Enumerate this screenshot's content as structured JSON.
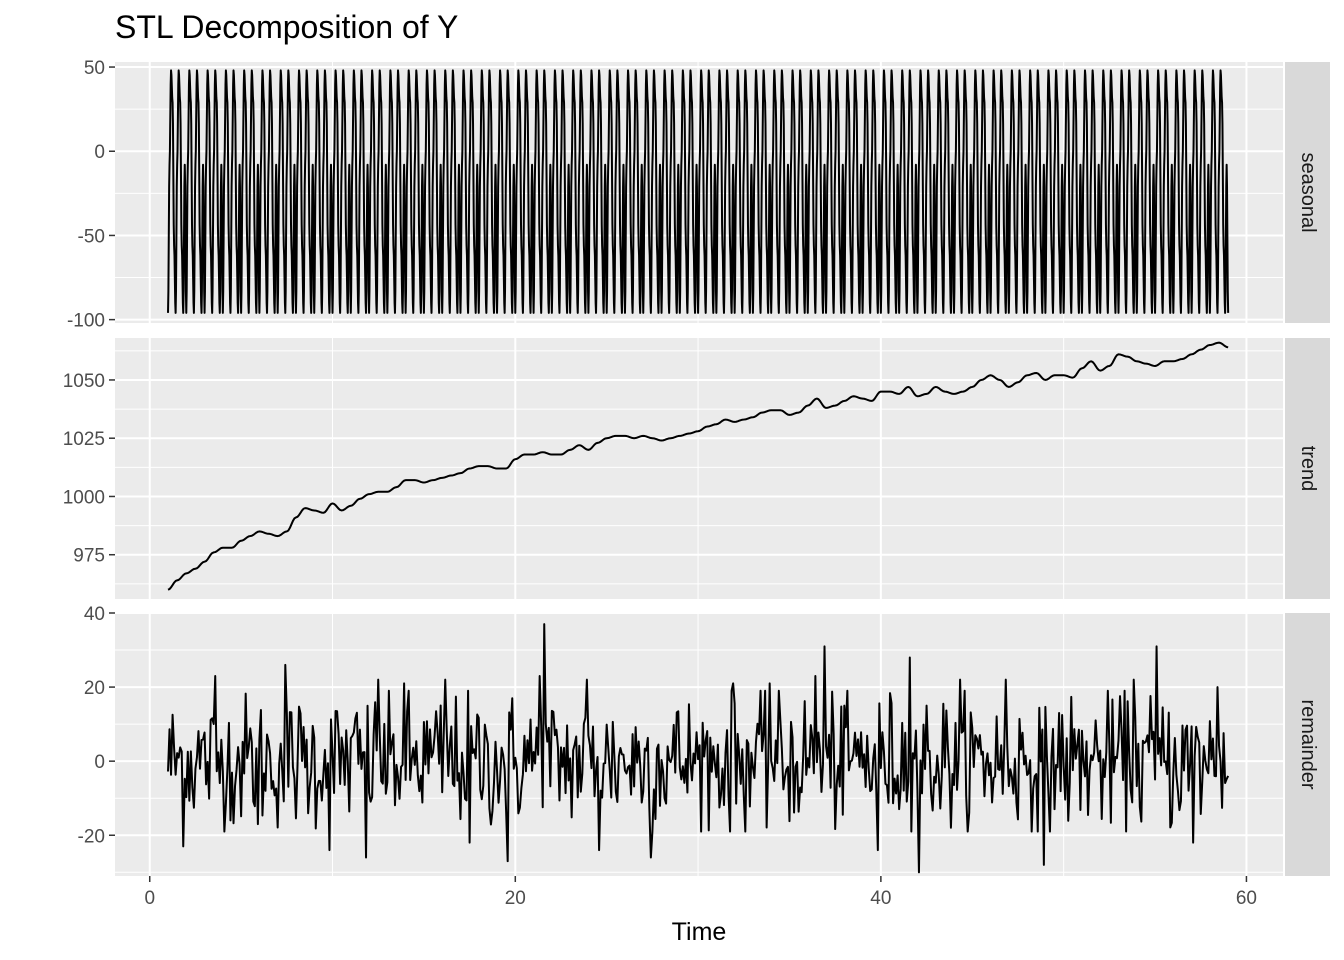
{
  "chart_data": {
    "type": "line",
    "title": "STL Decomposition of Y",
    "xlabel": "Time",
    "xlim": [
      -1.9,
      62.0
    ],
    "x_ticks": [
      0,
      20,
      40,
      60
    ],
    "x_range": [
      1,
      59
    ],
    "frequency": 12,
    "panels": [
      {
        "name": "seasonal",
        "ylim": [
          -102,
          53
        ],
        "y_ticks": [
          -100,
          -50,
          0,
          50
        ],
        "y_tick_labels": [
          "-100",
          "-50",
          "0",
          "50"
        ],
        "seasonal_period_values": [
          -96,
          -8,
          48,
          29,
          -56,
          -96,
          -8,
          48,
          29,
          -56,
          -96,
          -8
        ],
        "description_of_shape": "repeating cycle, about 3 cycles per time unit"
      },
      {
        "name": "trend",
        "ylim": [
          956,
          1068
        ],
        "y_ticks": [
          975,
          1000,
          1025,
          1050
        ],
        "y_tick_labels": [
          "975",
          "1000",
          "1025",
          "1050"
        ],
        "points": [
          [
            1,
            960
          ],
          [
            1.5,
            964
          ],
          [
            2,
            967
          ],
          [
            2.5,
            969
          ],
          [
            3,
            972
          ],
          [
            3.5,
            976
          ],
          [
            4,
            978
          ],
          [
            4.5,
            978
          ],
          [
            5,
            981
          ],
          [
            5.5,
            983
          ],
          [
            6,
            985
          ],
          [
            6.5,
            984
          ],
          [
            7,
            983
          ],
          [
            7.5,
            985
          ],
          [
            8,
            991
          ],
          [
            8.5,
            995
          ],
          [
            9,
            994
          ],
          [
            9.5,
            993
          ],
          [
            10,
            997
          ],
          [
            10.5,
            994
          ],
          [
            11,
            996
          ],
          [
            11.5,
            999
          ],
          [
            12,
            1001
          ],
          [
            12.5,
            1002
          ],
          [
            13,
            1002
          ],
          [
            13.5,
            1004
          ],
          [
            14,
            1007
          ],
          [
            14.5,
            1007
          ],
          [
            15,
            1006
          ],
          [
            15.5,
            1007
          ],
          [
            16,
            1008
          ],
          [
            16.5,
            1009
          ],
          [
            17,
            1010
          ],
          [
            17.5,
            1012
          ],
          [
            18,
            1013
          ],
          [
            18.5,
            1013
          ],
          [
            19,
            1012
          ],
          [
            19.5,
            1012
          ],
          [
            20,
            1016
          ],
          [
            20.5,
            1018
          ],
          [
            21,
            1018
          ],
          [
            21.5,
            1019
          ],
          [
            22,
            1018
          ],
          [
            22.5,
            1018
          ],
          [
            23,
            1020
          ],
          [
            23.5,
            1022
          ],
          [
            24,
            1020
          ],
          [
            24.5,
            1023
          ],
          [
            25,
            1025
          ],
          [
            25.5,
            1026
          ],
          [
            26,
            1026
          ],
          [
            26.5,
            1025
          ],
          [
            27,
            1026
          ],
          [
            27.5,
            1025
          ],
          [
            28,
            1024
          ],
          [
            28.5,
            1025
          ],
          [
            29,
            1026
          ],
          [
            29.5,
            1027
          ],
          [
            30,
            1028
          ],
          [
            30.5,
            1030
          ],
          [
            31,
            1031
          ],
          [
            31.5,
            1033
          ],
          [
            32,
            1032
          ],
          [
            32.5,
            1033
          ],
          [
            33,
            1034
          ],
          [
            33.5,
            1036
          ],
          [
            34,
            1037
          ],
          [
            34.5,
            1037
          ],
          [
            35,
            1035
          ],
          [
            35.5,
            1036
          ],
          [
            36,
            1039
          ],
          [
            36.5,
            1042
          ],
          [
            37,
            1038
          ],
          [
            37.5,
            1039
          ],
          [
            38,
            1041
          ],
          [
            38.5,
            1043
          ],
          [
            39,
            1042
          ],
          [
            39.5,
            1041
          ],
          [
            40,
            1045
          ],
          [
            40.5,
            1045
          ],
          [
            41,
            1044
          ],
          [
            41.5,
            1047
          ],
          [
            42,
            1043
          ],
          [
            42.5,
            1044
          ],
          [
            43,
            1047
          ],
          [
            43.5,
            1045
          ],
          [
            44,
            1044
          ],
          [
            44.5,
            1045
          ],
          [
            45,
            1047
          ],
          [
            45.5,
            1050
          ],
          [
            46,
            1052
          ],
          [
            46.5,
            1050
          ],
          [
            47,
            1047
          ],
          [
            47.5,
            1049
          ],
          [
            48,
            1052
          ],
          [
            48.5,
            1053
          ],
          [
            49,
            1050
          ],
          [
            49.5,
            1052
          ],
          [
            50,
            1052
          ],
          [
            50.5,
            1051
          ],
          [
            51,
            1055
          ],
          [
            51.5,
            1058
          ],
          [
            52,
            1054
          ],
          [
            52.5,
            1056
          ],
          [
            53,
            1061
          ],
          [
            53.5,
            1060
          ],
          [
            54,
            1058
          ],
          [
            54.5,
            1057
          ],
          [
            55,
            1056
          ],
          [
            55.5,
            1058
          ],
          [
            56,
            1058
          ],
          [
            56.5,
            1059
          ],
          [
            57,
            1061
          ],
          [
            57.5,
            1063
          ],
          [
            58,
            1065
          ],
          [
            58.5,
            1066
          ],
          [
            59,
            1064
          ]
        ]
      },
      {
        "name": "remainder",
        "ylim": [
          -31,
          40
        ],
        "y_ticks": [
          -20,
          0,
          20,
          40
        ],
        "y_tick_labels": [
          "-20",
          "0",
          "20",
          "40"
        ],
        "noise_sd": 9,
        "spikes": [
          [
            1.8,
            -23
          ],
          [
            3.6,
            23
          ],
          [
            5.9,
            -17
          ],
          [
            7.4,
            26
          ],
          [
            9.8,
            -24
          ],
          [
            11.8,
            -26
          ],
          [
            12.5,
            22
          ],
          [
            13.9,
            21
          ],
          [
            16.2,
            22
          ],
          [
            17.5,
            -22
          ],
          [
            19.6,
            -27
          ],
          [
            21.3,
            23
          ],
          [
            21.6,
            37
          ],
          [
            23.9,
            22
          ],
          [
            24.6,
            -24
          ],
          [
            27.4,
            -26
          ],
          [
            31.9,
            21
          ],
          [
            33.9,
            21
          ],
          [
            36.4,
            23
          ],
          [
            36.9,
            31
          ],
          [
            39.8,
            -24
          ],
          [
            41.6,
            28
          ],
          [
            42.1,
            -30
          ],
          [
            44.3,
            22
          ],
          [
            46.8,
            22
          ],
          [
            48.9,
            -28
          ],
          [
            53.8,
            22
          ],
          [
            55.1,
            31
          ],
          [
            57.1,
            -22
          ],
          [
            58.4,
            20
          ]
        ]
      }
    ]
  }
}
